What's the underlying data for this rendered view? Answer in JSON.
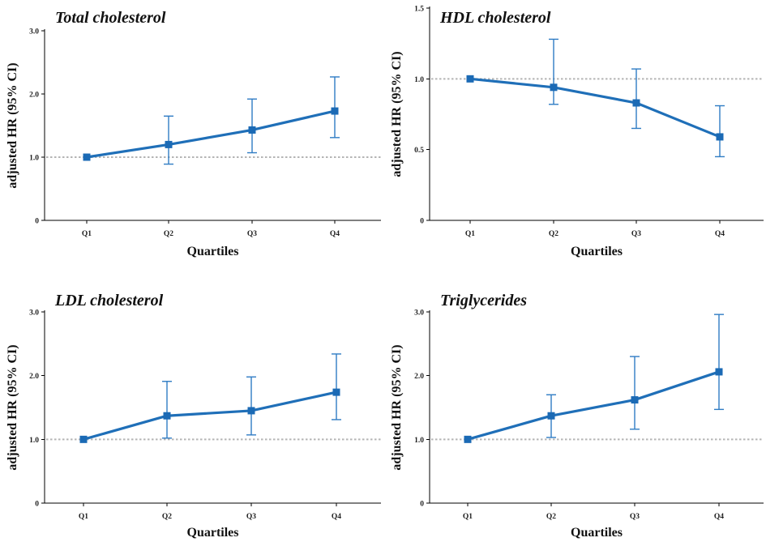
{
  "figure": {
    "colors": {
      "series": "#1f6fb8",
      "errorbar": "#2f7cc4",
      "reference": "#b5b5b5",
      "axis": "#000000"
    }
  },
  "chart_data": [
    {
      "type": "line",
      "title": "Total cholesterol",
      "xlabel": "Quartiles",
      "ylabel": "adjusted HR (95% CI)",
      "categories": [
        "Q1",
        "Q2",
        "Q3",
        "Q4"
      ],
      "values": [
        1.0,
        1.2,
        1.43,
        1.73
      ],
      "ci_lower": [
        1.0,
        0.89,
        1.07,
        1.31
      ],
      "ci_upper": [
        1.0,
        1.65,
        1.92,
        2.27
      ],
      "reference": 1.0,
      "ylim": [
        0,
        3.0
      ],
      "yticks": [
        0,
        1.0,
        2.0,
        3.0
      ],
      "ytick_labels": [
        "0",
        "1.0",
        "2.0",
        "3.0"
      ]
    },
    {
      "type": "line",
      "title": "HDL cholesterol",
      "xlabel": "Quartiles",
      "ylabel": "adjusted HR (95% CI)",
      "categories": [
        "Q1",
        "Q2",
        "Q3",
        "Q4"
      ],
      "values": [
        1.0,
        0.94,
        0.83,
        0.59
      ],
      "ci_lower": [
        1.0,
        0.82,
        0.65,
        0.45
      ],
      "ci_upper": [
        1.0,
        1.28,
        1.07,
        0.81
      ],
      "reference": 1.0,
      "ylim": [
        0,
        1.5
      ],
      "yticks": [
        0,
        0.5,
        1.0,
        1.5
      ],
      "ytick_labels": [
        "0",
        "0.5",
        "1.0",
        "1.5"
      ]
    },
    {
      "type": "line",
      "title": "LDL cholesterol",
      "xlabel": "Quartiles",
      "ylabel": "adjusted HR (95% CI)",
      "categories": [
        "Q1",
        "Q2",
        "Q3",
        "Q4"
      ],
      "values": [
        1.0,
        1.37,
        1.45,
        1.74
      ],
      "ci_lower": [
        1.0,
        1.02,
        1.07,
        1.31
      ],
      "ci_upper": [
        1.0,
        1.91,
        1.98,
        2.34
      ],
      "reference": 1.0,
      "ylim": [
        0,
        3.0
      ],
      "yticks": [
        0,
        1.0,
        2.0,
        3.0
      ],
      "ytick_labels": [
        "0",
        "1.0",
        "2.0",
        "3.0"
      ]
    },
    {
      "type": "line",
      "title": "Triglycerides",
      "xlabel": "Quartiles",
      "ylabel": "adjusted HR (95% CI)",
      "categories": [
        "Q1",
        "Q2",
        "Q3",
        "Q4"
      ],
      "values": [
        1.0,
        1.37,
        1.62,
        2.06
      ],
      "ci_lower": [
        1.0,
        1.03,
        1.16,
        1.47
      ],
      "ci_upper": [
        1.0,
        1.7,
        2.3,
        2.96
      ],
      "reference": 1.0,
      "ylim": [
        0,
        3.0
      ],
      "yticks": [
        0,
        1.0,
        2.0,
        3.0
      ],
      "ytick_labels": [
        "0",
        "1.0",
        "2.0",
        "3.0"
      ]
    }
  ]
}
